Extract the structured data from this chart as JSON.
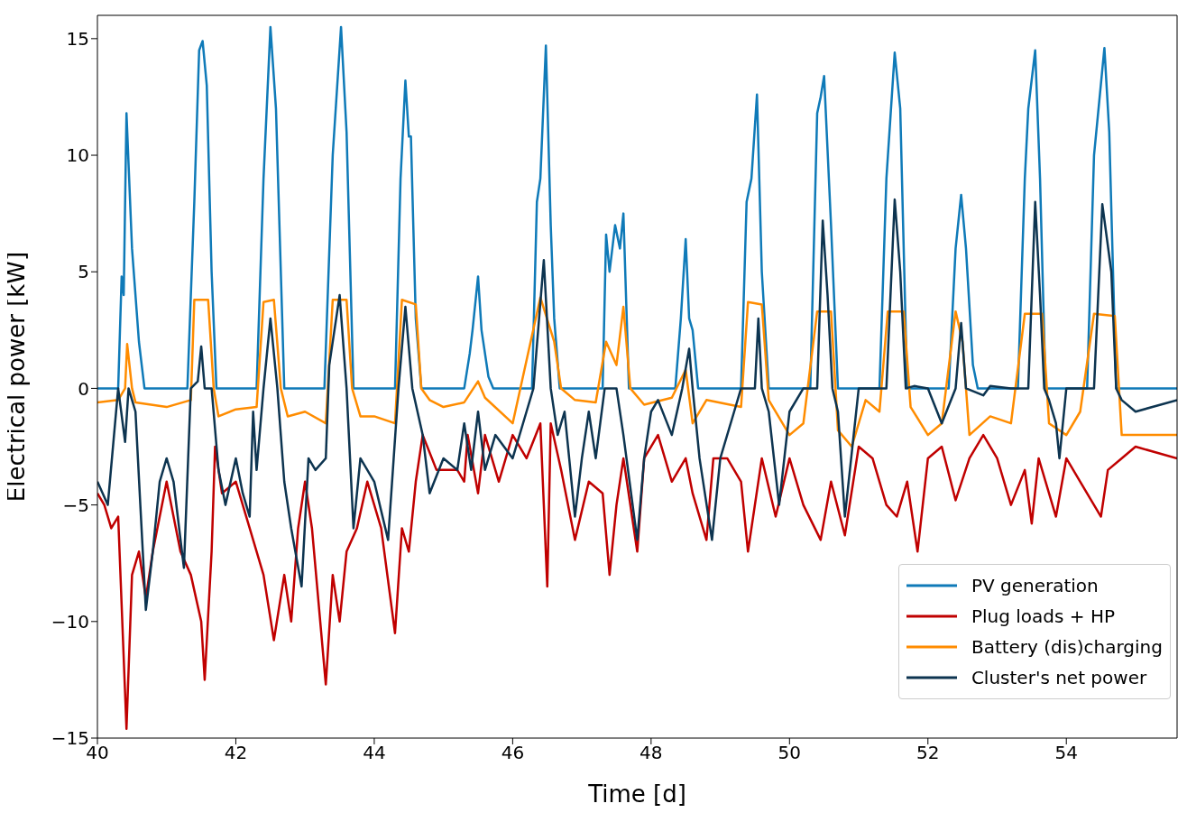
{
  "chart_data": {
    "type": "line",
    "xlabel": "Time [d]",
    "ylabel": "Electrical power [kW]",
    "xlim": [
      40,
      55.6
    ],
    "ylim": [
      -15,
      16
    ],
    "xticks": [
      40,
      42,
      44,
      46,
      48,
      50,
      52,
      54
    ],
    "yticks": [
      {
        "value": -15,
        "label": "−15"
      },
      {
        "value": -10,
        "label": "−10"
      },
      {
        "value": -5,
        "label": "−5"
      },
      0,
      5,
      10,
      15
    ],
    "grid": false,
    "legend": "bottom right",
    "marker": "none",
    "line_style": "solid",
    "series": [
      {
        "name": "PV generation",
        "color": "#0f7ab8",
        "x": [
          40,
          40.3,
          40.35,
          40.38,
          40.42,
          40.5,
          40.6,
          40.68,
          41.3,
          41.4,
          41.47,
          41.52,
          41.58,
          41.65,
          41.72,
          42.3,
          42.4,
          42.5,
          42.58,
          42.7,
          43.28,
          43.4,
          43.52,
          43.6,
          43.7,
          44.3,
          44.38,
          44.45,
          44.5,
          44.53,
          44.6,
          44.68,
          45.3,
          45.38,
          45.42,
          45.5,
          45.55,
          45.65,
          45.72,
          46.28,
          46.35,
          46.4,
          46.48,
          46.55,
          46.6,
          46.68,
          47.3,
          47.35,
          47.4,
          47.48,
          47.55,
          47.6,
          47.68,
          48.35,
          48.43,
          48.5,
          48.55,
          48.6,
          48.68,
          49.3,
          49.38,
          49.45,
          49.53,
          49.6,
          49.7,
          50.3,
          50.4,
          50.45,
          50.5,
          50.6,
          50.7,
          51.3,
          51.4,
          51.52,
          51.6,
          51.7,
          52.3,
          52.4,
          52.48,
          52.55,
          52.65,
          52.72,
          53.3,
          53.4,
          53.45,
          53.55,
          53.62,
          53.7,
          54.3,
          54.4,
          54.55,
          54.62,
          54.72,
          55.6
        ],
        "values": [
          0,
          0,
          4.8,
          4,
          11.8,
          6,
          2,
          0,
          0,
          8,
          14.5,
          14.9,
          13,
          5,
          0,
          0,
          9,
          15.5,
          12,
          0,
          0,
          10,
          15.5,
          11,
          0,
          0,
          9,
          13.2,
          10.8,
          10.8,
          3,
          0,
          0,
          1.5,
          2.5,
          4.8,
          2.5,
          0.5,
          0,
          0,
          8,
          9,
          14.7,
          7,
          3,
          0,
          0,
          6.6,
          5,
          7,
          6,
          7.5,
          0,
          0,
          3,
          6.4,
          3,
          2.5,
          0,
          0,
          8,
          9,
          12.6,
          5,
          0,
          0,
          11.8,
          12.5,
          13.4,
          7,
          0,
          0,
          9,
          14.4,
          12,
          0,
          0,
          6,
          8.3,
          6,
          1,
          0,
          0,
          9,
          12,
          14.5,
          9,
          0,
          0,
          10,
          14.6,
          11,
          0,
          0
        ]
      },
      {
        "name": "Plug loads + HP",
        "color": "#c00000",
        "x": [
          40,
          40.1,
          40.2,
          40.3,
          40.42,
          40.5,
          40.6,
          40.7,
          40.8,
          41,
          41.2,
          41.35,
          41.5,
          41.55,
          41.65,
          41.7,
          41.8,
          42,
          42.2,
          42.4,
          42.55,
          42.7,
          42.8,
          42.9,
          43,
          43.1,
          43.3,
          43.4,
          43.5,
          43.6,
          43.75,
          43.9,
          44,
          44.1,
          44.3,
          44.4,
          44.5,
          44.6,
          44.7,
          44.9,
          45.2,
          45.3,
          45.35,
          45.5,
          45.6,
          45.8,
          46,
          46.2,
          46.4,
          46.5,
          46.55,
          46.7,
          46.9,
          47.1,
          47.3,
          47.4,
          47.5,
          47.6,
          47.8,
          47.9,
          48.1,
          48.3,
          48.5,
          48.6,
          48.8,
          48.9,
          49.1,
          49.3,
          49.4,
          49.6,
          49.8,
          50,
          50.2,
          50.45,
          50.6,
          50.8,
          51,
          51.2,
          51.4,
          51.55,
          51.7,
          51.85,
          52,
          52.2,
          52.4,
          52.6,
          52.8,
          53,
          53.2,
          53.4,
          53.5,
          53.6,
          53.85,
          54,
          54.2,
          54.5,
          54.6,
          54.8,
          55,
          55.6
        ],
        "values": [
          -4.5,
          -5,
          -6,
          -5.5,
          -14.6,
          -8,
          -7,
          -9,
          -7,
          -4,
          -7,
          -8,
          -10,
          -12.5,
          -7,
          -2.5,
          -4.5,
          -4,
          -6,
          -8,
          -10.8,
          -8,
          -10,
          -6,
          -4,
          -6,
          -12.7,
          -8,
          -10,
          -7,
          -6,
          -4,
          -5,
          -6,
          -10.5,
          -6,
          -7,
          -4,
          -2,
          -3.5,
          -3.5,
          -4,
          -2,
          -4.5,
          -2,
          -4,
          -2,
          -3,
          -1.5,
          -8.5,
          -1.5,
          -3.5,
          -6.5,
          -4,
          -4.5,
          -8,
          -5,
          -3,
          -7,
          -3,
          -2,
          -4,
          -3,
          -4.5,
          -6.5,
          -3,
          -3,
          -4,
          -7,
          -3,
          -5.5,
          -3,
          -5,
          -6.5,
          -4,
          -6.3,
          -2.5,
          -3,
          -5,
          -5.5,
          -4,
          -7,
          -3,
          -2.5,
          -4.8,
          -3,
          -2,
          -3,
          -5,
          -3.5,
          -5.8,
          -3,
          -5.5,
          -3,
          -4,
          -5.5,
          -3.5,
          -3,
          -2.5,
          -3
        ]
      },
      {
        "name": "Battery (dis)charging",
        "color": "#ff8c00",
        "x": [
          40,
          40.3,
          40.4,
          40.43,
          40.5,
          40.55,
          41,
          41.35,
          41.4,
          41.6,
          41.68,
          41.75,
          42,
          42.3,
          42.4,
          42.55,
          42.65,
          42.75,
          43,
          43.3,
          43.4,
          43.6,
          43.68,
          43.8,
          44,
          44.3,
          44.4,
          44.6,
          44.68,
          44.8,
          45,
          45.3,
          45.5,
          45.6,
          46,
          46.4,
          46.6,
          46.7,
          46.9,
          47.2,
          47.35,
          47.5,
          47.6,
          47.7,
          47.9,
          48.3,
          48.5,
          48.6,
          48.8,
          49.3,
          49.4,
          49.6,
          49.7,
          50,
          50.2,
          50.4,
          50.6,
          50.7,
          50.9,
          51.1,
          51.3,
          51.42,
          51.65,
          51.75,
          52,
          52.2,
          52.4,
          52.5,
          52.6,
          52.9,
          53.2,
          53.4,
          53.65,
          53.75,
          54,
          54.2,
          54.4,
          54.7,
          54.8,
          55.6
        ],
        "values": [
          -0.6,
          -0.5,
          0,
          1.9,
          0,
          -0.6,
          -0.8,
          -0.5,
          3.8,
          3.8,
          0,
          -1.2,
          -0.9,
          -0.8,
          3.7,
          3.8,
          0,
          -1.2,
          -1,
          -1.5,
          3.8,
          3.8,
          0,
          -1.2,
          -1.2,
          -1.5,
          3.8,
          3.6,
          0,
          -0.5,
          -0.8,
          -0.6,
          0.3,
          -0.4,
          -1.5,
          3.9,
          2,
          0,
          -0.5,
          -0.6,
          2,
          1,
          3.5,
          0,
          -0.7,
          -0.4,
          0.8,
          -1.5,
          -0.5,
          -0.8,
          3.7,
          3.6,
          -0.5,
          -2,
          -1.5,
          3.3,
          3.3,
          -1.8,
          -2.5,
          -0.5,
          -1,
          3.3,
          3.3,
          -0.8,
          -2,
          -1.5,
          3.3,
          2,
          -2,
          -1.2,
          -1.5,
          3.2,
          3.2,
          -1.5,
          -2,
          -1,
          3.2,
          3.1,
          -2,
          -2
        ]
      },
      {
        "name": "Cluster's net power",
        "color": "#0d3450",
        "x": [
          40,
          40.15,
          40.3,
          40.4,
          40.45,
          40.55,
          40.62,
          40.7,
          40.8,
          40.9,
          41,
          41.1,
          41.25,
          41.35,
          41.45,
          41.5,
          41.55,
          41.65,
          41.75,
          41.85,
          42,
          42.1,
          42.2,
          42.25,
          42.3,
          42.4,
          42.5,
          42.6,
          42.7,
          42.8,
          42.95,
          43.05,
          43.15,
          43.3,
          43.35,
          43.5,
          43.6,
          43.7,
          43.8,
          44,
          44.2,
          44.35,
          44.45,
          44.55,
          44.7,
          44.8,
          45,
          45.2,
          45.3,
          45.4,
          45.5,
          45.6,
          45.75,
          46,
          46.2,
          46.3,
          46.45,
          46.55,
          46.65,
          46.75,
          46.85,
          46.9,
          47,
          47.1,
          47.2,
          47.33,
          47.5,
          47.6,
          47.8,
          47.9,
          48,
          48.1,
          48.3,
          48.45,
          48.55,
          48.6,
          48.7,
          48.88,
          49,
          49.2,
          49.3,
          49.5,
          49.55,
          49.6,
          49.7,
          49.85,
          50,
          50.2,
          50.4,
          50.48,
          50.55,
          50.62,
          50.7,
          50.8,
          51,
          51.4,
          51.52,
          51.6,
          51.68,
          51.8,
          52,
          52.2,
          52.4,
          52.48,
          52.55,
          52.8,
          52.9,
          53.2,
          53.45,
          53.55,
          53.62,
          53.68,
          53.75,
          53.85,
          53.9,
          54,
          54.4,
          54.52,
          54.65,
          54.72,
          54.8,
          55,
          55.6
        ],
        "values": [
          -4,
          -5,
          0,
          -2.3,
          0,
          -1,
          -5,
          -9.5,
          -7,
          -4,
          -3,
          -4,
          -7.7,
          0,
          0.3,
          1.8,
          0,
          0,
          -3.5,
          -5,
          -3,
          -4.5,
          -5.5,
          -1,
          -3.5,
          0,
          3,
          0,
          -4,
          -6,
          -8.5,
          -3,
          -3.5,
          -3,
          1,
          4,
          0,
          -6,
          -3,
          -4,
          -6.5,
          0,
          3.5,
          0,
          -2,
          -4.5,
          -3,
          -3.5,
          -1.5,
          -3.5,
          -1,
          -3.5,
          -2,
          -3,
          -1,
          0,
          5.5,
          0,
          -2,
          -1,
          -4,
          -5.5,
          -3,
          -1,
          -3,
          0,
          0,
          -2,
          -6.5,
          -3,
          -1,
          -0.5,
          -2,
          0,
          1.7,
          0,
          -3,
          -6.5,
          -3,
          -1,
          0,
          0,
          3,
          0,
          -1,
          -5,
          -1,
          0,
          0,
          7.2,
          4,
          0,
          -1,
          -5.5,
          0,
          0,
          8.1,
          5,
          0,
          0.1,
          0,
          -1.5,
          0,
          2.8,
          0,
          -0.3,
          0.1,
          0,
          0,
          8,
          4,
          0,
          -0.5,
          -1.5,
          -3,
          0,
          0,
          7.9,
          5,
          0,
          -0.5,
          -1,
          -0.5
        ]
      }
    ]
  }
}
